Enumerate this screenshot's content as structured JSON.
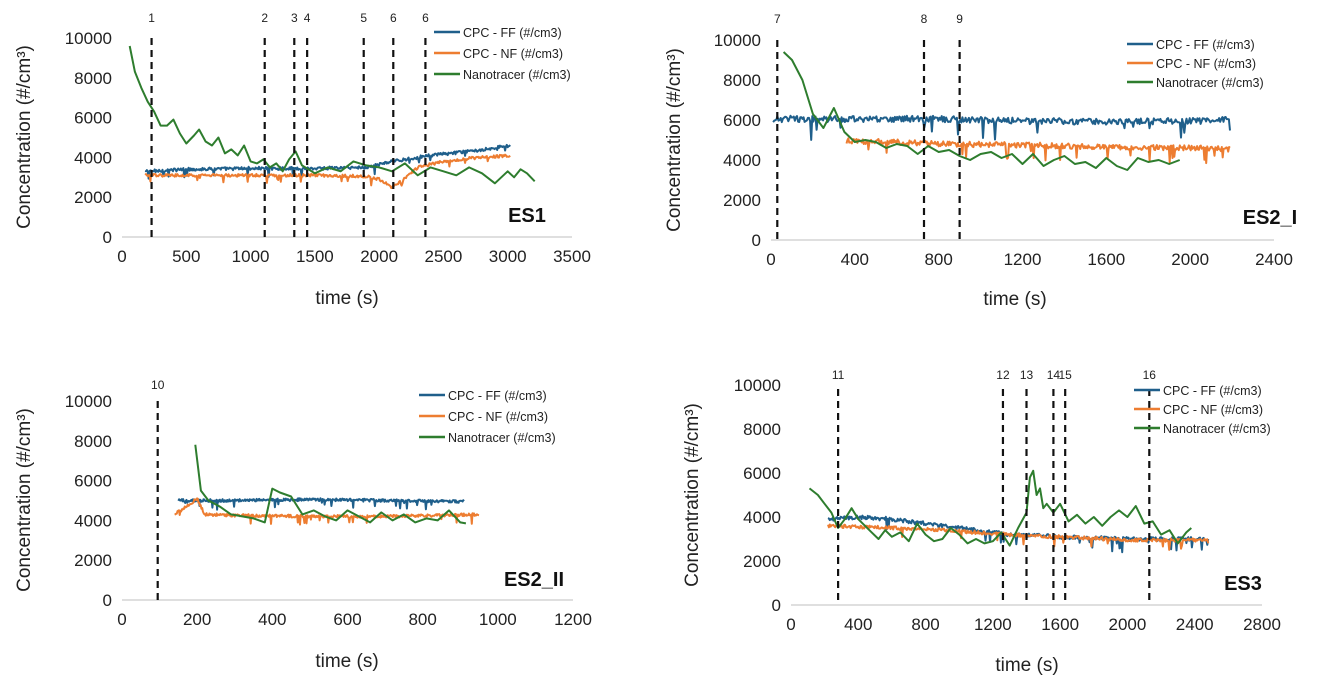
{
  "colors": {
    "ff": "#1f5f8b",
    "nf": "#ed7d31",
    "nano": "#2e7d2e",
    "axis": "#bfbfbf",
    "event": "#111111"
  },
  "legend": [
    "CPC - FF (#/cm3)",
    "CPC - NF (#/cm3)",
    "Nanotracer (#/cm3)"
  ],
  "chart_data": [
    {
      "type": "line",
      "panel_label": "ES1",
      "xlabel": "time (s)",
      "ylabel": "Concentration (#/cm³)",
      "xlim": [
        0,
        3500
      ],
      "ylim": [
        0,
        10000
      ],
      "xticks": [
        0,
        500,
        1000,
        1500,
        2000,
        2500,
        3000,
        3500
      ],
      "yticks": [
        0,
        2000,
        4000,
        6000,
        8000,
        10000
      ],
      "events": [
        {
          "label": "1",
          "x": 230
        },
        {
          "label": "2",
          "x": 1110
        },
        {
          "label": "3",
          "x": 1340
        },
        {
          "label": "4",
          "x": 1440
        },
        {
          "label": "5",
          "x": 1880
        },
        {
          "label": "6",
          "x": 2110
        },
        {
          "label": "6",
          "x": 2360
        }
      ],
      "series": [
        {
          "name": "CPC - FF (#/cm3)",
          "key": "ff",
          "noise": 80,
          "x": [
            180,
            500,
            1000,
            1500,
            1900,
            2100,
            2400,
            2700,
            3020
          ],
          "y": [
            3300,
            3400,
            3450,
            3450,
            3500,
            3800,
            4100,
            4300,
            4600
          ]
        },
        {
          "name": "CPC - NF (#/cm3)",
          "key": "nf",
          "noise": 70,
          "x": [
            180,
            500,
            1000,
            1500,
            1900,
            2000,
            2100,
            2150,
            2300,
            2500,
            2700,
            3020
          ],
          "y": [
            3100,
            3100,
            3100,
            3100,
            3050,
            2900,
            2500,
            2700,
            3500,
            3800,
            3950,
            4100
          ]
        },
        {
          "name": "Nanotracer (#/cm3)",
          "key": "nano",
          "noise": 0,
          "x": [
            60,
            100,
            150,
            200,
            250,
            300,
            350,
            400,
            450,
            500,
            560,
            600,
            650,
            700,
            750,
            800,
            850,
            900,
            950,
            1000,
            1050,
            1100,
            1150,
            1200,
            1250,
            1300,
            1350,
            1400,
            1450,
            1500,
            1600,
            1700,
            1800,
            1900,
            2000,
            2100,
            2200,
            2300,
            2400,
            2500,
            2600,
            2700,
            2800,
            2900,
            3000,
            3050,
            3100,
            3150,
            3210
          ],
          "y": [
            9600,
            8300,
            7500,
            6800,
            6300,
            5600,
            5600,
            5900,
            5200,
            4700,
            5100,
            5400,
            4800,
            4600,
            5000,
            4200,
            4400,
            4100,
            4600,
            3800,
            3700,
            3900,
            3500,
            3700,
            3300,
            3900,
            4300,
            3600,
            3400,
            3200,
            3500,
            3300,
            3800,
            3600,
            3500,
            3300,
            3700,
            3100,
            3500,
            3300,
            3100,
            3500,
            3200,
            2700,
            3300,
            3000,
            3400,
            3200,
            2800
          ]
        }
      ]
    },
    {
      "type": "line",
      "panel_label": "ES2_I",
      "xlabel": "time (s)",
      "ylabel": "Concentration (#/cm³)",
      "xlim": [
        0,
        2400
      ],
      "ylim": [
        0,
        10000
      ],
      "xticks": [
        0,
        400,
        800,
        1200,
        1600,
        2000,
        2400
      ],
      "yticks": [
        0,
        2000,
        4000,
        6000,
        8000,
        10000
      ],
      "events": [
        {
          "label": "7",
          "x": 30
        },
        {
          "label": "8",
          "x": 730
        },
        {
          "label": "9",
          "x": 900
        }
      ],
      "series": [
        {
          "name": "CPC - FF (#/cm3)",
          "key": "ff",
          "noise": 160,
          "x": [
            10,
            400,
            800,
            1200,
            1600,
            2000,
            2190
          ],
          "y": [
            6050,
            6050,
            6050,
            5950,
            5900,
            5950,
            6000
          ]
        },
        {
          "name": "CPC - NF (#/cm3)",
          "key": "nf",
          "noise": 140,
          "x": [
            360,
            600,
            800,
            1200,
            1600,
            2000,
            2190
          ],
          "y": [
            4950,
            4900,
            4800,
            4750,
            4650,
            4600,
            4550
          ]
        },
        {
          "name": "Nanotracer (#/cm3)",
          "key": "nano",
          "noise": 0,
          "x": [
            60,
            100,
            150,
            200,
            250,
            300,
            350,
            400,
            450,
            500,
            550,
            600,
            650,
            700,
            750,
            800,
            850,
            900,
            950,
            1000,
            1050,
            1100,
            1150,
            1200,
            1250,
            1300,
            1350,
            1400,
            1450,
            1500,
            1550,
            1600,
            1650,
            1700,
            1750,
            1800,
            1850,
            1900,
            1950
          ],
          "y": [
            9400,
            9000,
            8000,
            6300,
            5600,
            6600,
            5400,
            4900,
            5000,
            4900,
            4600,
            4800,
            4700,
            4300,
            4700,
            4400,
            4500,
            4200,
            4000,
            4300,
            4400,
            4100,
            4300,
            3800,
            4300,
            3700,
            4000,
            4200,
            3800,
            3900,
            3600,
            4100,
            3700,
            3500,
            4100,
            3900,
            4000,
            3800,
            4000
          ]
        }
      ]
    },
    {
      "type": "line",
      "panel_label": "ES2_II",
      "xlabel": "time (s)",
      "ylabel": "Concentration (#/cm³)",
      "xlim": [
        0,
        1200
      ],
      "ylim": [
        0,
        10000
      ],
      "xticks": [
        0,
        200,
        400,
        600,
        800,
        1000,
        1200
      ],
      "yticks": [
        0,
        2000,
        4000,
        6000,
        8000,
        10000
      ],
      "events": [
        {
          "label": "10",
          "x": 95
        }
      ],
      "series": [
        {
          "name": "CPC - FF (#/cm3)",
          "key": "ff",
          "noise": 70,
          "x": [
            150,
            300,
            500,
            700,
            910
          ],
          "y": [
            5000,
            5000,
            5050,
            5000,
            4950
          ]
        },
        {
          "name": "CPC - NF (#/cm3)",
          "key": "nf",
          "noise": 70,
          "x": [
            140,
            180,
            200,
            220,
            300,
            500,
            700,
            950
          ],
          "y": [
            4300,
            4800,
            5100,
            4300,
            4250,
            4200,
            4200,
            4300
          ]
        },
        {
          "name": "Nanotracer (#/cm3)",
          "key": "nano",
          "noise": 0,
          "x": [
            195,
            210,
            230,
            260,
            290,
            320,
            350,
            380,
            400,
            420,
            450,
            480,
            510,
            540,
            570,
            600,
            630,
            660,
            690,
            720,
            750,
            780,
            810,
            840,
            870,
            900,
            915
          ],
          "y": [
            7800,
            5500,
            5000,
            4700,
            4300,
            4200,
            4100,
            3900,
            5600,
            5400,
            5200,
            4300,
            4500,
            4200,
            4000,
            4500,
            4200,
            3900,
            4400,
            4000,
            4300,
            3900,
            4100,
            4000,
            4500,
            3900,
            3850
          ]
        }
      ]
    },
    {
      "type": "line",
      "panel_label": "ES3",
      "xlabel": "time (s)",
      "ylabel": "Concentration (#/cm³)",
      "xlim": [
        0,
        2800
      ],
      "ylim": [
        0,
        10000
      ],
      "xticks": [
        0,
        400,
        800,
        1200,
        1600,
        2000,
        2400,
        2800
      ],
      "yticks": [
        0,
        2000,
        4000,
        6000,
        8000,
        10000
      ],
      "events": [
        {
          "label": "11",
          "x": 280
        },
        {
          "label": "12",
          "x": 1260
        },
        {
          "label": "13",
          "x": 1400
        },
        {
          "label": "14",
          "x": 1560
        },
        {
          "label": "15",
          "x": 1630
        },
        {
          "label": "16",
          "x": 2130
        }
      ],
      "series": [
        {
          "name": "CPC - FF (#/cm3)",
          "key": "ff",
          "noise": 90,
          "x": [
            220,
            400,
            600,
            800,
            1000,
            1200,
            1300,
            1400,
            1600,
            2000,
            2400,
            2480
          ],
          "y": [
            3900,
            4000,
            3900,
            3700,
            3500,
            3300,
            3200,
            3200,
            3100,
            3000,
            3000,
            3000
          ]
        },
        {
          "name": "CPC - NF (#/cm3)",
          "key": "nf",
          "noise": 80,
          "x": [
            220,
            400,
            600,
            800,
            1000,
            1200,
            1400,
            1600,
            2000,
            2400,
            2480
          ],
          "y": [
            3600,
            3550,
            3500,
            3450,
            3350,
            3250,
            3150,
            3100,
            2950,
            2950,
            2950
          ]
        },
        {
          "name": "Nanotracer (#/cm3)",
          "key": "nano",
          "noise": 0,
          "x": [
            110,
            160,
            200,
            240,
            280,
            320,
            360,
            400,
            440,
            480,
            520,
            560,
            600,
            650,
            700,
            750,
            800,
            850,
            900,
            950,
            1000,
            1050,
            1100,
            1150,
            1200,
            1250,
            1300,
            1350,
            1400,
            1420,
            1440,
            1460,
            1480,
            1500,
            1520,
            1560,
            1600,
            1650,
            1700,
            1750,
            1800,
            1850,
            1900,
            1950,
            2000,
            2050,
            2100,
            2150,
            2200,
            2250,
            2300,
            2350,
            2380
          ],
          "y": [
            5300,
            5000,
            4600,
            4200,
            3500,
            3900,
            4400,
            3900,
            3600,
            3300,
            3000,
            3400,
            3100,
            3300,
            2900,
            3700,
            3200,
            2900,
            3000,
            3500,
            3200,
            2800,
            3000,
            2800,
            2900,
            3300,
            2700,
            3500,
            4200,
            5800,
            6100,
            5000,
            5300,
            4400,
            4600,
            4200,
            4600,
            3800,
            4100,
            3700,
            4000,
            3600,
            4000,
            4300,
            4000,
            4500,
            3700,
            3800,
            3200,
            3400,
            2800,
            3300,
            3500
          ]
        }
      ]
    }
  ]
}
